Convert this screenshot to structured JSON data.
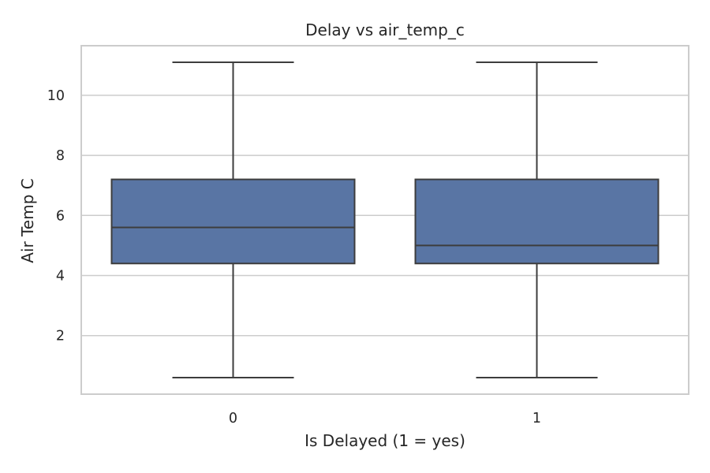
{
  "chart_data": {
    "type": "box",
    "title": "Delay vs air_temp_c",
    "xlabel": "Is Delayed (1 = yes)",
    "ylabel": "Air Temp C",
    "categories": [
      "0",
      "1"
    ],
    "boxes": [
      {
        "category": "0",
        "whisker_low": 0.6,
        "q1": 4.4,
        "median": 5.6,
        "q3": 7.2,
        "whisker_high": 11.1
      },
      {
        "category": "1",
        "whisker_low": 0.6,
        "q1": 4.4,
        "median": 5.0,
        "q3": 7.2,
        "whisker_high": 11.1
      }
    ],
    "ylim": [
      0.05,
      11.65
    ],
    "yticks": [
      "2",
      "4",
      "6",
      "8",
      "10"
    ],
    "grid": true,
    "box_color": "#5975a4",
    "line_color": "#3d3d3d"
  }
}
